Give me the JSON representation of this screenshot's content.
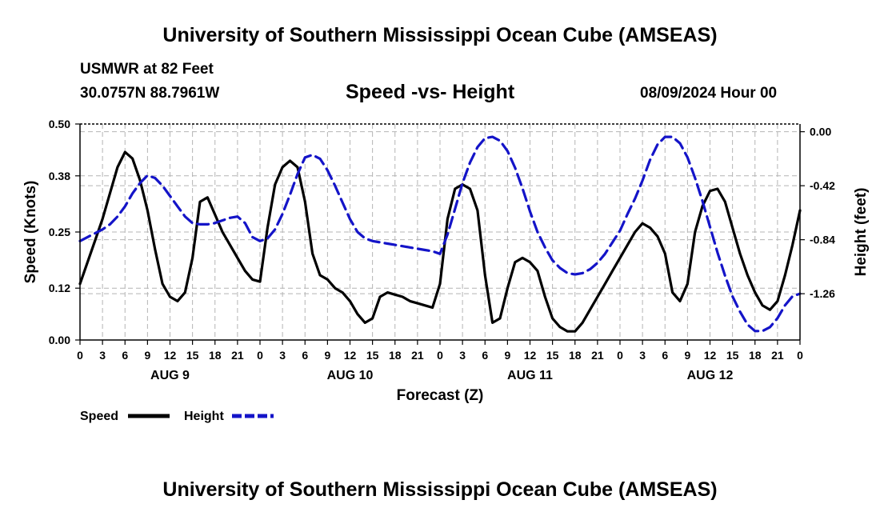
{
  "header": {
    "title": "University of Southern Mississippi Ocean Cube (AMSEAS)",
    "station": "USMWR at 82 Feet",
    "coords": "30.0757N  88.7961W",
    "chart_title": "Speed -vs- Height",
    "date": "08/09/2024 Hour 00"
  },
  "footer": {
    "title": "University of Southern Mississippi Ocean Cube (AMSEAS)"
  },
  "colors": {
    "speed": "#000000",
    "height": "#1414c8",
    "grid": "#b4b4b4"
  },
  "chart_data": {
    "type": "line",
    "title": "Speed -vs- Height",
    "xlabel": "Forecast (Z)",
    "ylabel_left": "Speed (Knots)",
    "ylabel_right": "Height (feet)",
    "xlim": [
      0,
      96
    ],
    "ylim_left": [
      0,
      0.5
    ],
    "ylim_right": [
      -1.62,
      0.06
    ],
    "x_ticks": [
      0,
      3,
      6,
      9,
      12,
      15,
      18,
      21,
      24,
      27,
      30,
      33,
      36,
      39,
      42,
      45,
      48,
      51,
      54,
      57,
      60,
      63,
      66,
      69,
      72,
      75,
      78,
      81,
      84,
      87,
      90,
      93,
      96
    ],
    "x_tick_labels": [
      "0",
      "3",
      "6",
      "9",
      "12",
      "15",
      "18",
      "21",
      "0",
      "3",
      "6",
      "9",
      "12",
      "15",
      "18",
      "21",
      "0",
      "3",
      "6",
      "9",
      "12",
      "15",
      "18",
      "21",
      "0",
      "3",
      "6",
      "9",
      "12",
      "15",
      "18",
      "21",
      "0"
    ],
    "day_labels": [
      {
        "x": 12,
        "label": "AUG 9"
      },
      {
        "x": 36,
        "label": "AUG 10"
      },
      {
        "x": 60,
        "label": "AUG 11"
      },
      {
        "x": 84,
        "label": "AUG 12"
      }
    ],
    "y_left_ticks": [
      0,
      0.12,
      0.25,
      0.38,
      0.5
    ],
    "y_left_tick_labels": [
      "0.00",
      "0.12",
      "0.25",
      "0.38",
      "0.50"
    ],
    "y_right_ticks": [
      0,
      -0.42,
      -0.84,
      -1.26
    ],
    "y_right_tick_labels": [
      "0.00",
      "-0.42",
      "-0.84",
      "-1.26"
    ],
    "legend": [
      {
        "name": "Speed",
        "style": "solid"
      },
      {
        "name": "Height",
        "style": "dashed"
      }
    ],
    "series": [
      {
        "name": "Speed",
        "axis": "left",
        "x": [
          0,
          1,
          2,
          3,
          4,
          5,
          6,
          7,
          8,
          9,
          10,
          11,
          12,
          13,
          14,
          15,
          16,
          17,
          18,
          19,
          20,
          21,
          22,
          23,
          24,
          25,
          26,
          27,
          28,
          29,
          30,
          31,
          32,
          33,
          34,
          35,
          36,
          37,
          38,
          39,
          40,
          41,
          42,
          43,
          44,
          45,
          46,
          47,
          48,
          49,
          50,
          51,
          52,
          53,
          54,
          55,
          56,
          57,
          58,
          59,
          60,
          61,
          62,
          63,
          64,
          65,
          66,
          67,
          68,
          69,
          70,
          71,
          72,
          73,
          74,
          75,
          76,
          77,
          78,
          79,
          80,
          81,
          82,
          83,
          84,
          85,
          86,
          87,
          88,
          89,
          90,
          91,
          92,
          93,
          94,
          95,
          96
        ],
        "values": [
          0.13,
          0.18,
          0.23,
          0.28,
          0.34,
          0.4,
          0.435,
          0.42,
          0.37,
          0.3,
          0.21,
          0.13,
          0.1,
          0.09,
          0.11,
          0.19,
          0.32,
          0.33,
          0.29,
          0.25,
          0.22,
          0.19,
          0.16,
          0.14,
          0.135,
          0.26,
          0.36,
          0.4,
          0.415,
          0.4,
          0.32,
          0.2,
          0.15,
          0.14,
          0.12,
          0.11,
          0.09,
          0.06,
          0.04,
          0.05,
          0.1,
          0.11,
          0.105,
          0.1,
          0.09,
          0.085,
          0.08,
          0.075,
          0.13,
          0.28,
          0.35,
          0.36,
          0.35,
          0.3,
          0.15,
          0.04,
          0.05,
          0.12,
          0.18,
          0.19,
          0.18,
          0.16,
          0.1,
          0.05,
          0.03,
          0.02,
          0.02,
          0.04,
          0.07,
          0.1,
          0.13,
          0.16,
          0.19,
          0.22,
          0.25,
          0.27,
          0.26,
          0.24,
          0.2,
          0.11,
          0.09,
          0.13,
          0.25,
          0.31,
          0.345,
          0.35,
          0.32,
          0.26,
          0.2,
          0.15,
          0.11,
          0.08,
          0.07,
          0.09,
          0.15,
          0.22,
          0.3
        ]
      },
      {
        "name": "Height",
        "axis": "right",
        "x": [
          0,
          1,
          2,
          3,
          4,
          5,
          6,
          7,
          8,
          9,
          10,
          11,
          12,
          13,
          14,
          15,
          16,
          17,
          18,
          19,
          20,
          21,
          22,
          23,
          24,
          25,
          26,
          27,
          28,
          29,
          30,
          31,
          32,
          33,
          34,
          35,
          36,
          37,
          38,
          39,
          40,
          41,
          42,
          43,
          44,
          45,
          46,
          47,
          48,
          49,
          50,
          51,
          52,
          53,
          54,
          55,
          56,
          57,
          58,
          59,
          60,
          61,
          62,
          63,
          64,
          65,
          66,
          67,
          68,
          69,
          70,
          71,
          72,
          73,
          74,
          75,
          76,
          77,
          78,
          79,
          80,
          81,
          82,
          83,
          84,
          85,
          86,
          87,
          88,
          89,
          90,
          91,
          92,
          93,
          94,
          95,
          96
        ],
        "values": [
          -0.85,
          -0.82,
          -0.79,
          -0.76,
          -0.72,
          -0.66,
          -0.58,
          -0.48,
          -0.4,
          -0.34,
          -0.36,
          -0.42,
          -0.5,
          -0.58,
          -0.66,
          -0.71,
          -0.72,
          -0.72,
          -0.71,
          -0.69,
          -0.67,
          -0.66,
          -0.71,
          -0.82,
          -0.85,
          -0.83,
          -0.76,
          -0.64,
          -0.49,
          -0.33,
          -0.2,
          -0.18,
          -0.21,
          -0.3,
          -0.42,
          -0.55,
          -0.68,
          -0.78,
          -0.83,
          -0.85,
          -0.86,
          -0.87,
          -0.88,
          -0.89,
          -0.9,
          -0.91,
          -0.92,
          -0.93,
          -0.95,
          -0.8,
          -0.6,
          -0.4,
          -0.24,
          -0.12,
          -0.05,
          -0.04,
          -0.07,
          -0.15,
          -0.28,
          -0.44,
          -0.62,
          -0.78,
          -0.9,
          -1.0,
          -1.06,
          -1.1,
          -1.11,
          -1.1,
          -1.07,
          -1.02,
          -0.95,
          -0.86,
          -0.77,
          -0.64,
          -0.52,
          -0.38,
          -0.22,
          -0.1,
          -0.04,
          -0.04,
          -0.09,
          -0.2,
          -0.36,
          -0.54,
          -0.74,
          -0.94,
          -1.12,
          -1.28,
          -1.4,
          -1.5,
          -1.55,
          -1.55,
          -1.52,
          -1.45,
          -1.35,
          -1.28,
          -1.26
        ]
      }
    ]
  }
}
